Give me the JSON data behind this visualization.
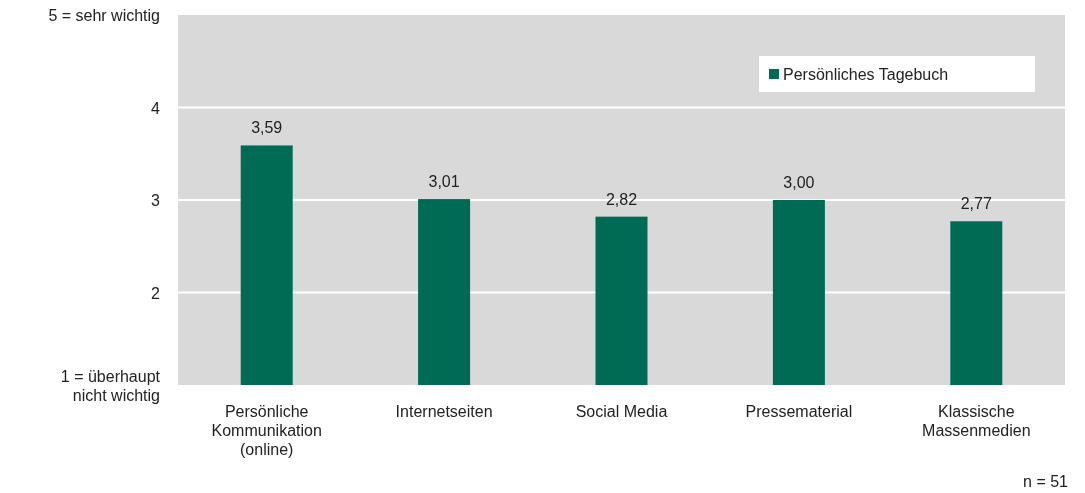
{
  "chart_data": {
    "type": "bar",
    "categories": [
      "Persönliche Kommunikation (online)",
      "Internetseiten",
      "Social Media",
      "Pressematerial",
      "Klassische Massenmedien"
    ],
    "series": [
      {
        "name": "Persönliches Tagebuch",
        "color": "#006b54",
        "values": [
          3.59,
          3.01,
          2.82,
          3.0,
          2.77
        ],
        "value_labels": [
          "3,59",
          "3,01",
          "2,82",
          "3,00",
          "2,77"
        ]
      }
    ],
    "ylim": [
      1,
      5
    ],
    "yticks": [
      {
        "value": 1,
        "label": "1 = überhaupt nicht wichtig"
      },
      2,
      3,
      4,
      {
        "value": 5,
        "label": "5 = sehr wichtig"
      }
    ],
    "grid": "y",
    "legend": "top right",
    "annotations": [
      "n = 51"
    ]
  }
}
